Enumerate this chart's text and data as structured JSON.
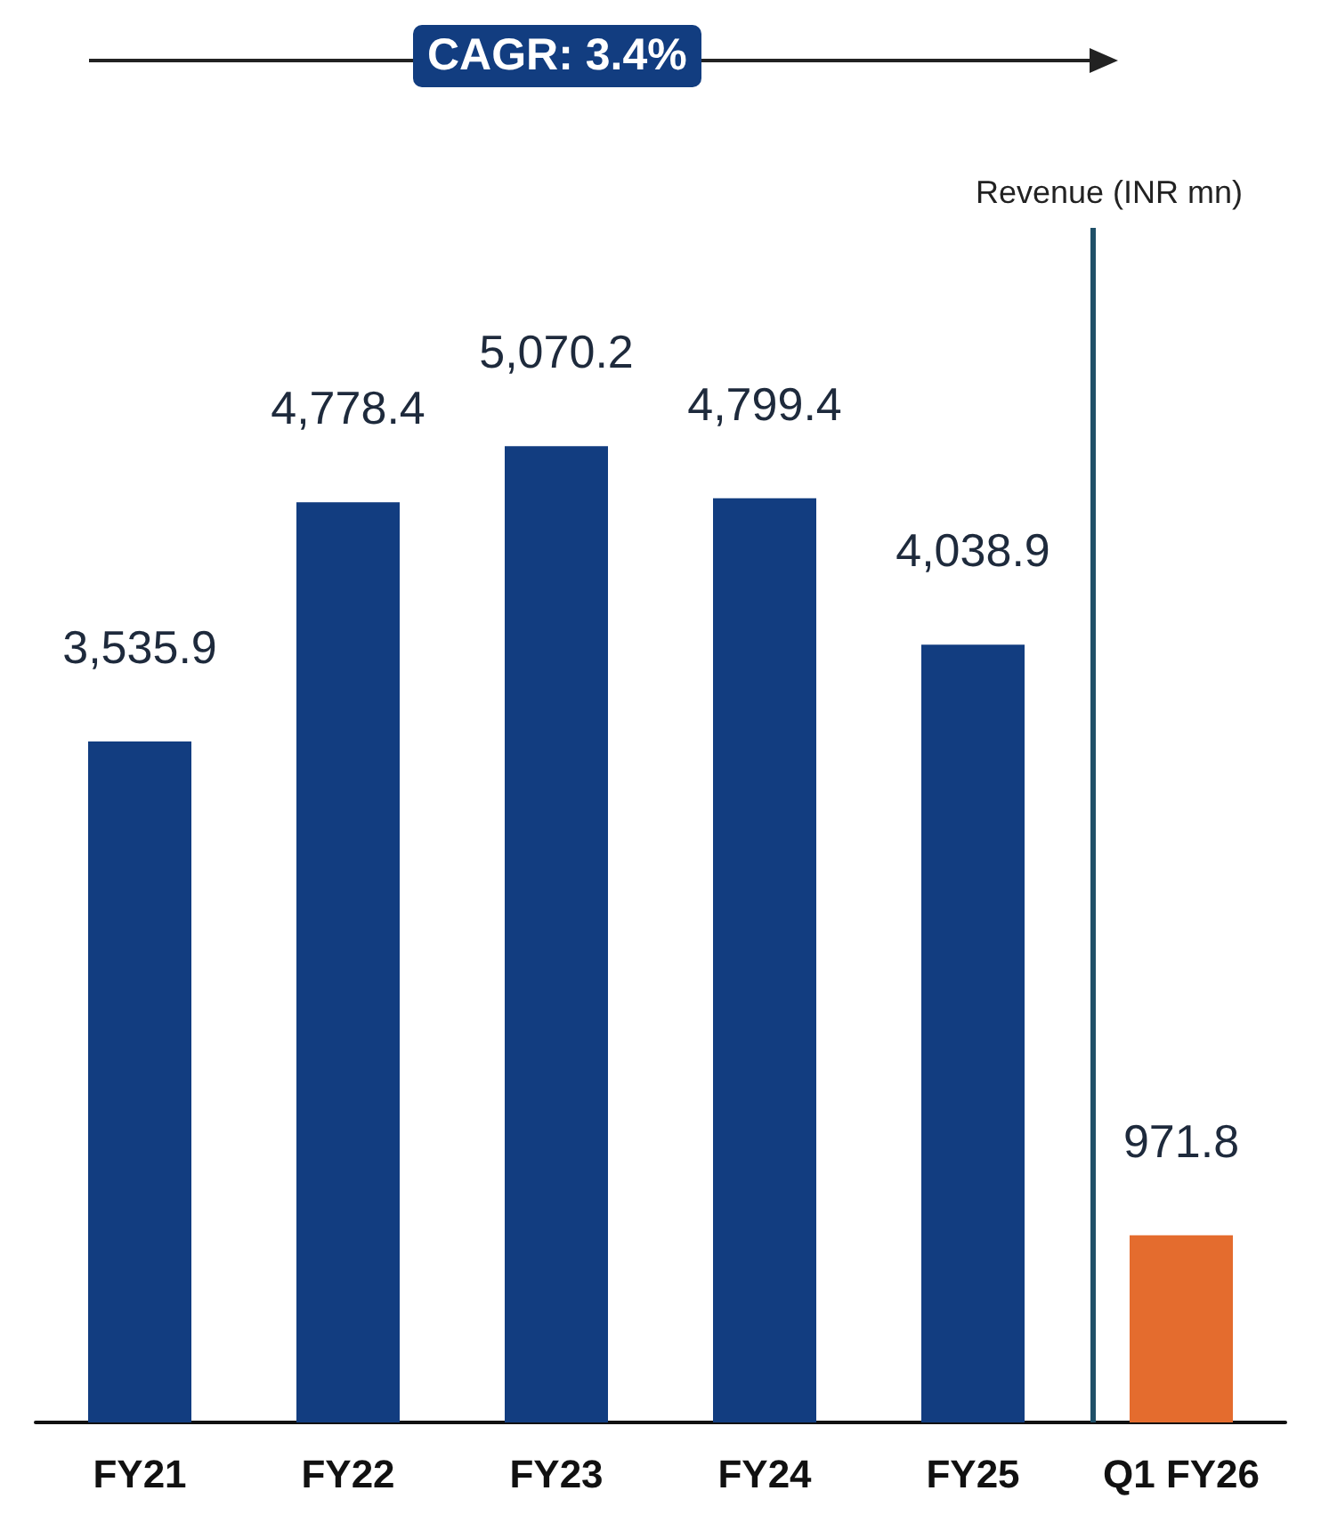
{
  "chart_data": {
    "type": "bar",
    "categories": [
      "FY21",
      "FY22",
      "FY23",
      "FY24",
      "FY25",
      "Q1 FY26"
    ],
    "values": [
      3535.9,
      4778.4,
      5070.2,
      4799.4,
      4038.9,
      971.8
    ],
    "colors": [
      "#123d80",
      "#123d80",
      "#123d80",
      "#123d80",
      "#123d80",
      "#e46c2e"
    ],
    "value_labels": [
      "3,535.9",
      "4,778.4",
      "5,070.2",
      "4,799.4",
      "4,038.9",
      "971.8"
    ],
    "annotations": [
      "CAGR: 3.4%",
      "Revenue (INR mn)"
    ],
    "ref_lines": [
      {
        "axis": "x",
        "value": "Q1 FY26",
        "color": "#1f5068"
      }
    ],
    "grid": false
  }
}
